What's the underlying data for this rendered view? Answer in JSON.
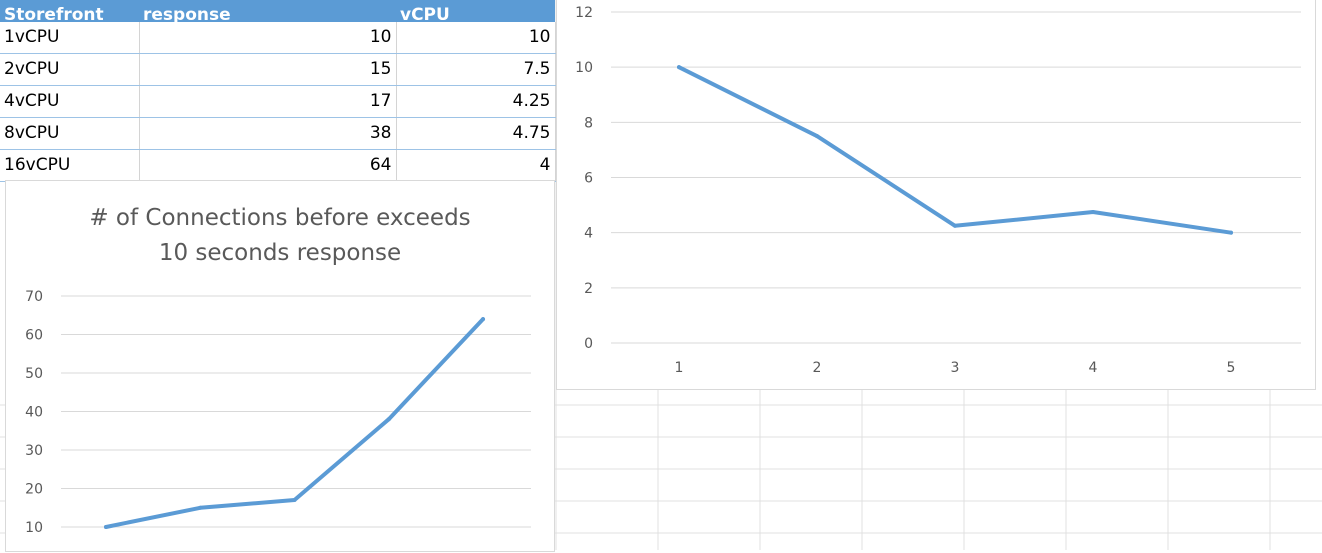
{
  "table": {
    "headers": [
      "Storefront",
      "response",
      "vCPU"
    ],
    "rows": [
      {
        "label": "1vCPU",
        "response": "10",
        "vcpu": "10"
      },
      {
        "label": "2vCPU",
        "response": "15",
        "vcpu": "7.5"
      },
      {
        "label": "4vCPU",
        "response": "17",
        "vcpu": "4.25"
      },
      {
        "label": "8vCPU",
        "response": "38",
        "vcpu": "4.75"
      },
      {
        "label": "16vCPU",
        "response": "64",
        "vcpu": "4"
      }
    ]
  },
  "colors": {
    "header_bg": "#5b9bd5",
    "series_line": "#5b9bd5",
    "gridline": "#d9d9d9",
    "axis_text": "#595959"
  },
  "chart_data": [
    {
      "type": "line",
      "title_lines": [
        "# of Connections before exceeds",
        "10 seconds response"
      ],
      "x": [
        1,
        2,
        3,
        4,
        5
      ],
      "series": [
        {
          "values": [
            10,
            15,
            17,
            38,
            64
          ]
        }
      ],
      "yticks": [
        10,
        20,
        30,
        40,
        50,
        60,
        70
      ],
      "ylim": [
        10,
        70
      ],
      "grid": true
    },
    {
      "type": "line",
      "x": [
        1,
        2,
        3,
        4,
        5
      ],
      "xticks": [
        "1",
        "2",
        "3",
        "4",
        "5"
      ],
      "series": [
        {
          "values": [
            10,
            7.5,
            4.25,
            4.75,
            4
          ]
        }
      ],
      "yticks": [
        0,
        2,
        4,
        6,
        8,
        10,
        12
      ],
      "ylim": [
        0,
        12
      ],
      "grid": true
    }
  ]
}
